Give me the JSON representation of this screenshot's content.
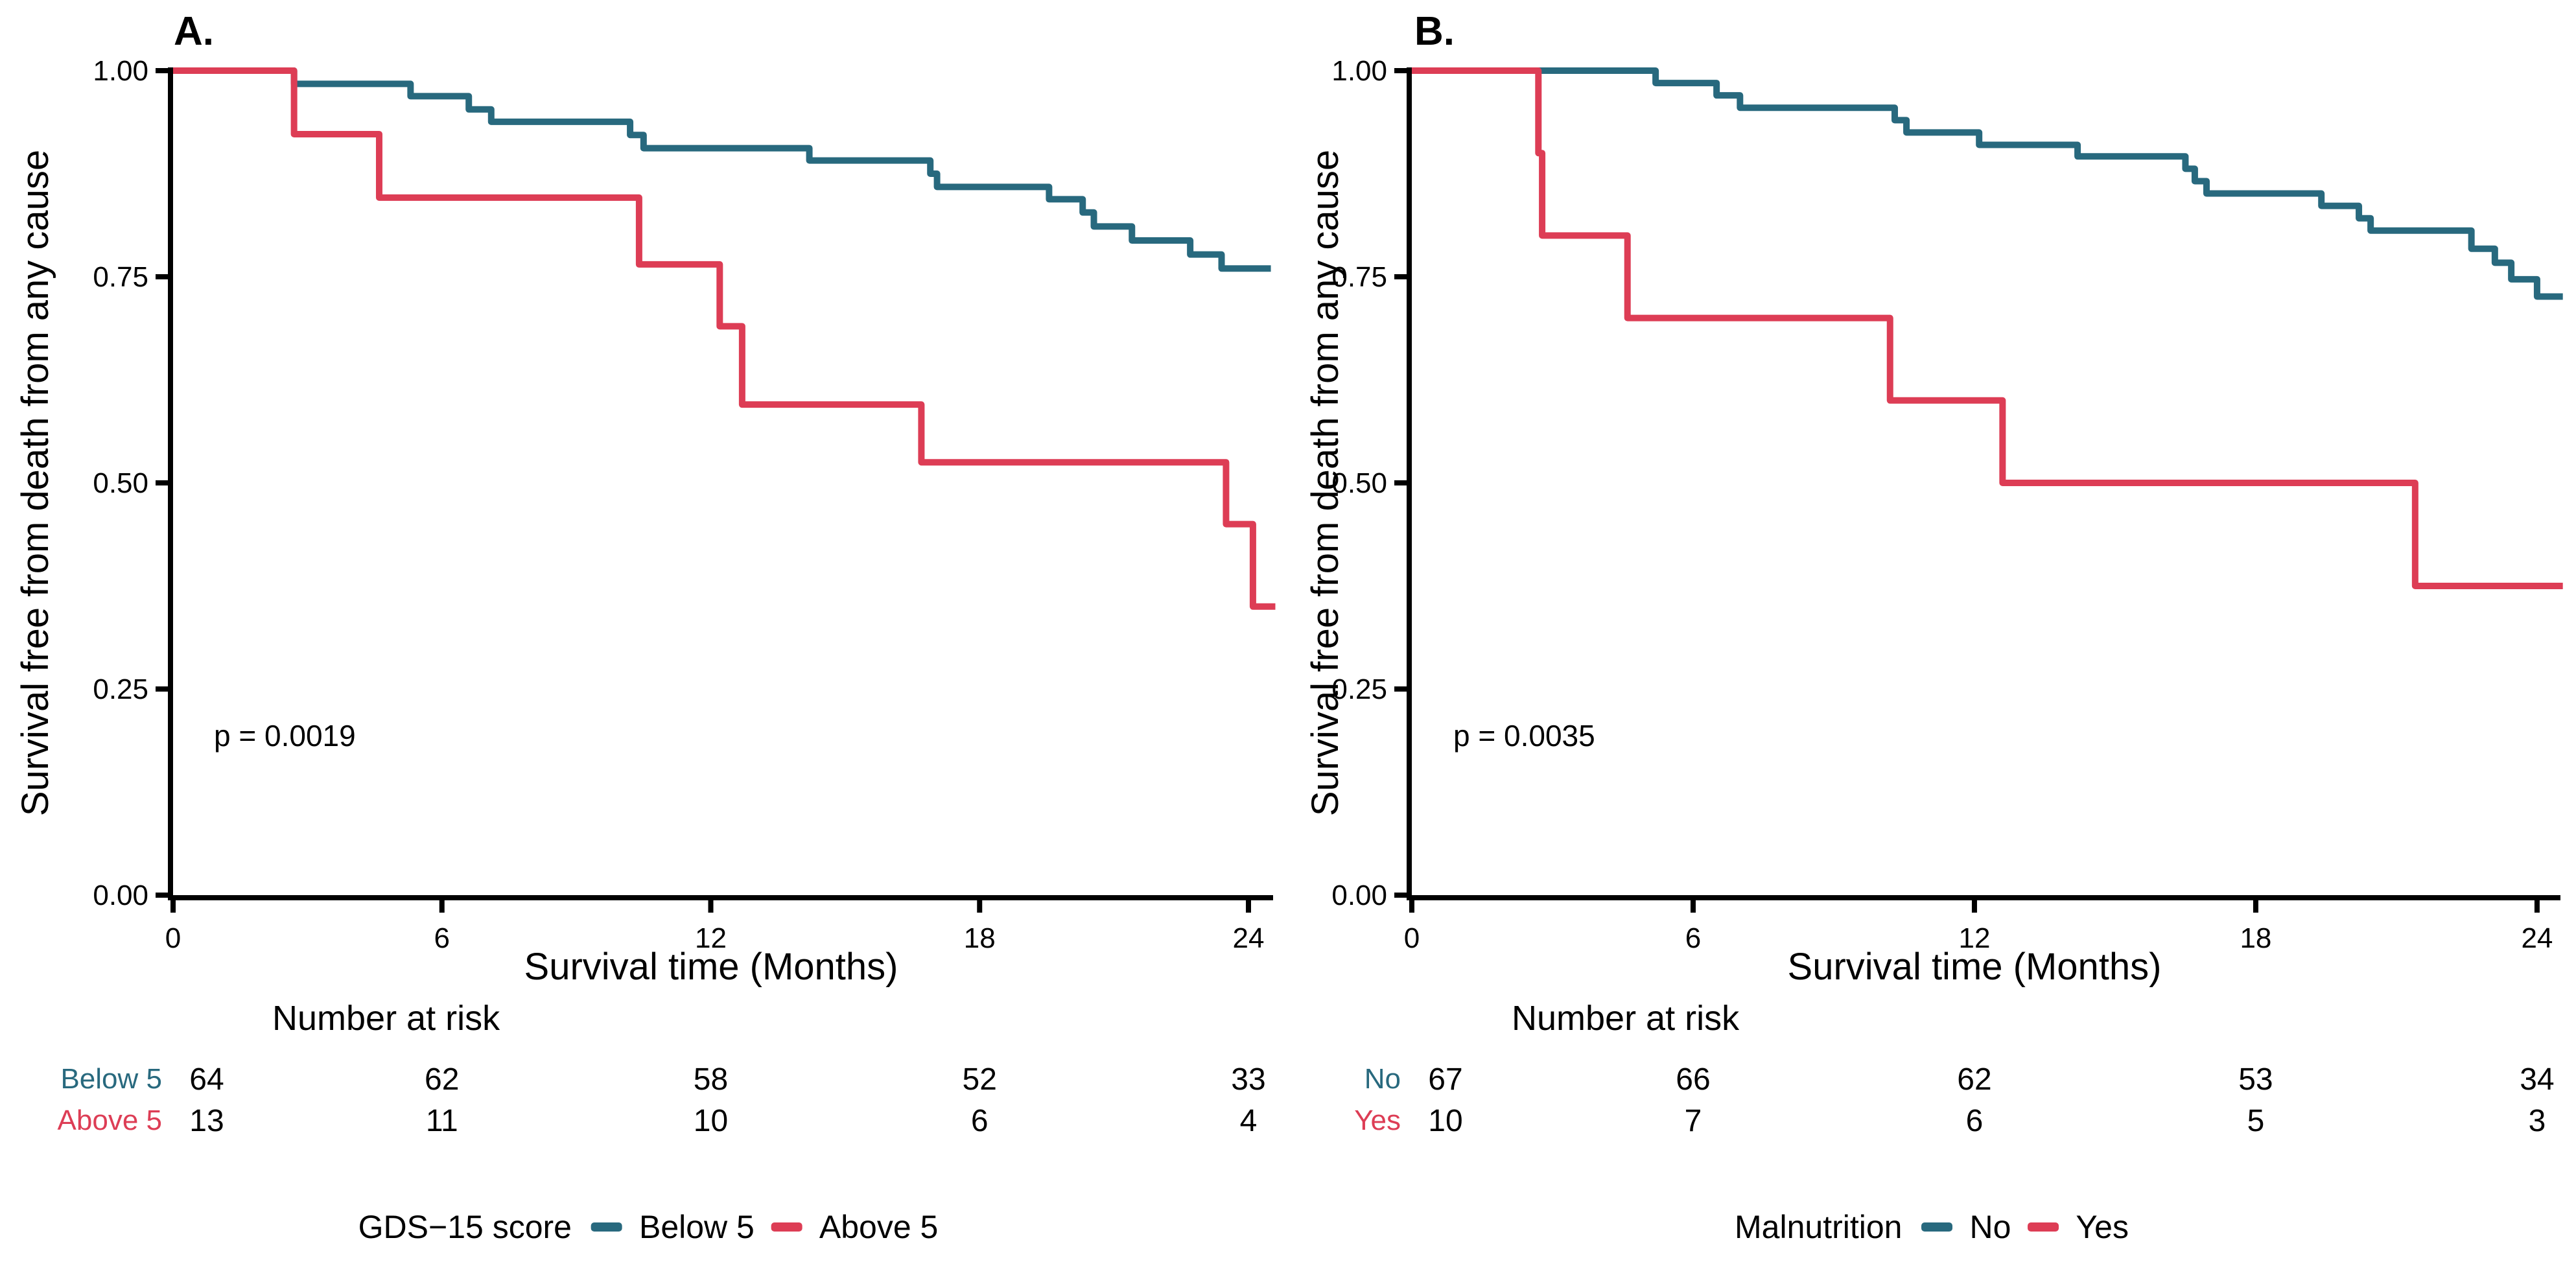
{
  "colors": {
    "blue": "#28697E",
    "red": "#DD3D55",
    "axis": "#000000",
    "background": "#ffffff"
  },
  "chart_data": [
    {
      "type": "line",
      "subtype": "kaplan-meier-step",
      "panel_label": "A.",
      "ylabel": "Survival free from death from any cause",
      "xlabel": "Survival time (Months)",
      "p_value": "p = 0.0019",
      "xlim": [
        0,
        24.6
      ],
      "ylim": [
        0,
        1
      ],
      "grid": "off",
      "legend_position": "bottom",
      "x_ticks": [
        {
          "v": 0,
          "label": "0"
        },
        {
          "v": 6,
          "label": "6"
        },
        {
          "v": 12,
          "label": "12"
        },
        {
          "v": 18,
          "label": "18"
        },
        {
          "v": 24,
          "label": "24"
        }
      ],
      "y_ticks": [
        {
          "v": 1.0,
          "label": "1.00"
        },
        {
          "v": 0.75,
          "label": "0.75"
        },
        {
          "v": 0.5,
          "label": "0.50"
        },
        {
          "v": 0.25,
          "label": "0.25"
        },
        {
          "v": 0.0,
          "label": "0.00"
        }
      ],
      "legend": {
        "title": "GDS−15 score",
        "entries": [
          {
            "label": "Below 5",
            "color": "blue"
          },
          {
            "label": "Above 5",
            "color": "red"
          }
        ]
      },
      "series": [
        {
          "name": "Below 5",
          "color": "blue",
          "end": 24.5,
          "points": [
            [
              0,
              1.0
            ],
            [
              2.7,
              0.984
            ],
            [
              5.3,
              0.969
            ],
            [
              6.6,
              0.953
            ],
            [
              7.1,
              0.938
            ],
            [
              10.2,
              0.922
            ],
            [
              10.5,
              0.906
            ],
            [
              14.2,
              0.891
            ],
            [
              16.9,
              0.875
            ],
            [
              17.05,
              0.859
            ],
            [
              19.55,
              0.844
            ],
            [
              20.3,
              0.828
            ],
            [
              20.55,
              0.811
            ],
            [
              21.4,
              0.794
            ],
            [
              22.7,
              0.777
            ],
            [
              23.4,
              0.76
            ]
          ]
        },
        {
          "name": "Above 5",
          "color": "red",
          "end": 24.6,
          "points": [
            [
              0,
              1.0
            ],
            [
              2.7,
              0.923
            ],
            [
              4.6,
              0.846
            ],
            [
              10.4,
              0.765
            ],
            [
              12.2,
              0.69
            ],
            [
              12.7,
              0.595
            ],
            [
              16.7,
              0.525
            ],
            [
              23.5,
              0.45
            ],
            [
              24.1,
              0.35
            ]
          ]
        }
      ],
      "risk_table": {
        "title": "Number at risk",
        "time_points": [
          0,
          6,
          12,
          18,
          24
        ],
        "rows": [
          {
            "label": "Below 5",
            "color": "blue",
            "counts": [
              "64",
              "62",
              "58",
              "52",
              "33"
            ]
          },
          {
            "label": "Above 5",
            "color": "red",
            "counts": [
              "13",
              "11",
              "10",
              "6",
              "4"
            ]
          }
        ]
      }
    },
    {
      "type": "line",
      "subtype": "kaplan-meier-step",
      "panel_label": "B.",
      "ylabel": "Survival free from death from any cause",
      "xlabel": "Survival time (Months)",
      "p_value": "p = 0.0035",
      "xlim": [
        0,
        24.6
      ],
      "ylim": [
        0,
        1
      ],
      "grid": "off",
      "legend_position": "bottom",
      "x_ticks": [
        {
          "v": 0,
          "label": "0"
        },
        {
          "v": 6,
          "label": "6"
        },
        {
          "v": 12,
          "label": "12"
        },
        {
          "v": 18,
          "label": "18"
        },
        {
          "v": 24,
          "label": "24"
        }
      ],
      "y_ticks": [
        {
          "v": 1.0,
          "label": "1.00"
        },
        {
          "v": 0.75,
          "label": "0.75"
        },
        {
          "v": 0.5,
          "label": "0.50"
        },
        {
          "v": 0.25,
          "label": "0.25"
        },
        {
          "v": 0.0,
          "label": "0.00"
        }
      ],
      "legend": {
        "title": "Malnutrition",
        "entries": [
          {
            "label": "No",
            "color": "blue"
          },
          {
            "label": "Yes",
            "color": "red"
          }
        ]
      },
      "series": [
        {
          "name": "No",
          "color": "blue",
          "end": 24.55,
          "points": [
            [
              0,
              1.0
            ],
            [
              5.2,
              0.985
            ],
            [
              6.5,
              0.97
            ],
            [
              7.0,
              0.955
            ],
            [
              10.3,
              0.94
            ],
            [
              10.55,
              0.925
            ],
            [
              12.1,
              0.91
            ],
            [
              14.2,
              0.896
            ],
            [
              16.5,
              0.881
            ],
            [
              16.7,
              0.866
            ],
            [
              16.95,
              0.851
            ],
            [
              19.4,
              0.836
            ],
            [
              20.2,
              0.821
            ],
            [
              20.45,
              0.806
            ],
            [
              22.6,
              0.784
            ],
            [
              23.1,
              0.767
            ],
            [
              23.45,
              0.747
            ],
            [
              24.0,
              0.726
            ]
          ]
        },
        {
          "name": "Yes",
          "color": "red",
          "end": 24.55,
          "points": [
            [
              0,
              1.0
            ],
            [
              2.7,
              0.9
            ],
            [
              2.78,
              0.8
            ],
            [
              4.6,
              0.7
            ],
            [
              10.2,
              0.6
            ],
            [
              12.6,
              0.5
            ],
            [
              21.4,
              0.375
            ]
          ]
        }
      ],
      "risk_table": {
        "title": "Number at risk",
        "time_points": [
          0,
          6,
          12,
          18,
          24
        ],
        "rows": [
          {
            "label": "No",
            "color": "blue",
            "counts": [
              "67",
              "66",
              "62",
              "53",
              "34"
            ]
          },
          {
            "label": "Yes",
            "color": "red",
            "counts": [
              "10",
              "7",
              "6",
              "5",
              "3"
            ]
          }
        ]
      }
    }
  ]
}
